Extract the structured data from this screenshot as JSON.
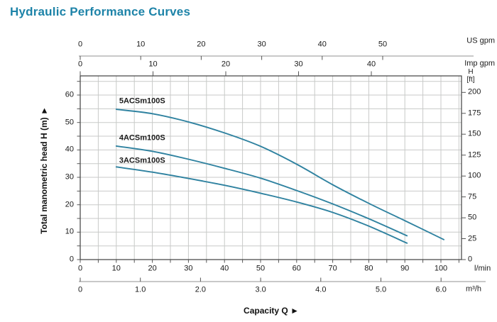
{
  "title": "Hydraulic Performance Curves",
  "colors": {
    "title": "#1d83a8",
    "curve": "#2f82a0",
    "grid": "#c8cac8",
    "plot_border": "#3f3f3f",
    "axis_line": "#909090",
    "tick": "#555555",
    "text": "#1a1a1a"
  },
  "chart_data": {
    "type": "line",
    "title": "Hydraulic Performance Curves",
    "xlabel": "Capacity Q  ►",
    "grid": true,
    "legend_position": "inline-curve-labels",
    "x_axes": {
      "us_gpm": {
        "unit": "US gpm",
        "ticks": [
          0,
          10,
          20,
          30,
          40,
          50
        ]
      },
      "imp_gpm": {
        "unit": "Imp gpm",
        "ticks": [
          0,
          10,
          20,
          30,
          40
        ]
      },
      "l_min": {
        "unit": "l/min",
        "ticks": [
          0,
          10,
          20,
          30,
          40,
          50,
          60,
          70,
          80,
          90,
          100
        ],
        "minor_step": 5,
        "max": 105
      },
      "m3_h": {
        "unit": "m³/h",
        "ticks": [
          0,
          1,
          2,
          3,
          4,
          5,
          6
        ],
        "tick_labels": [
          "0",
          "1.0",
          "2.0",
          "3.0",
          "4.0",
          "5.0",
          "6.0"
        ]
      }
    },
    "y_axes": {
      "head_m": {
        "label": "Total manometric head H (m)  ►",
        "ticks": [
          0,
          10,
          20,
          30,
          40,
          50,
          60
        ],
        "minor_step": 5,
        "range": [
          0,
          67
        ]
      },
      "head_ft": {
        "unit_lines": [
          "H",
          "[ft]"
        ],
        "ticks": [
          0,
          25,
          50,
          75,
          100,
          125,
          150,
          175,
          200
        ]
      }
    },
    "series": [
      {
        "name": "5ACSm100S",
        "points": [
          [
            10,
            54.8
          ],
          [
            20,
            53.2
          ],
          [
            30,
            50.2
          ],
          [
            40,
            46.2
          ],
          [
            50,
            41.3
          ],
          [
            60,
            34.8
          ],
          [
            70,
            27.3
          ],
          [
            80,
            20.5
          ],
          [
            90,
            14.2
          ],
          [
            100.8,
            7.3
          ]
        ],
        "label_pos": [
          10.8,
          57.6
        ]
      },
      {
        "name": "4ACSm100S",
        "points": [
          [
            10,
            41.4
          ],
          [
            20,
            39.5
          ],
          [
            30,
            36.6
          ],
          [
            40,
            33.3
          ],
          [
            50,
            29.7
          ],
          [
            60,
            25.2
          ],
          [
            70,
            20.3
          ],
          [
            80,
            14.9
          ],
          [
            90.6,
            8.7
          ]
        ],
        "label_pos": [
          10.8,
          44.2
        ]
      },
      {
        "name": "3ACSm100S",
        "points": [
          [
            10,
            33.8
          ],
          [
            20,
            31.9
          ],
          [
            30,
            29.6
          ],
          [
            40,
            27.1
          ],
          [
            50,
            24.2
          ],
          [
            60,
            21.0
          ],
          [
            70,
            17.2
          ],
          [
            80,
            12.2
          ],
          [
            90.6,
            6.0
          ]
        ],
        "label_pos": [
          10.8,
          35.9
        ]
      }
    ]
  }
}
